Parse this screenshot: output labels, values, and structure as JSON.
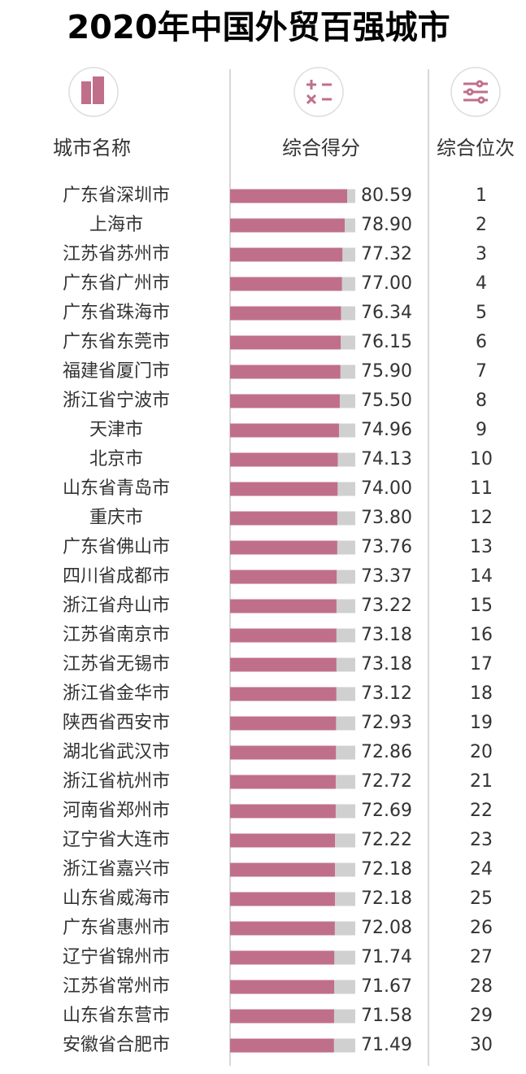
{
  "chart_data": {
    "type": "bar",
    "title": "2020年中国外贸百强城市",
    "column_headers": [
      "城市名称",
      "综合得分",
      "综合位次"
    ],
    "categories": [
      "广东省深圳市",
      "上海市",
      "江苏省苏州市",
      "广东省广州市",
      "广东省珠海市",
      "广东省东莞市",
      "福建省厦门市",
      "浙江省宁波市",
      "天津市",
      "北京市",
      "山东省青岛市",
      "重庆市",
      "广东省佛山市",
      "四川省成都市",
      "浙江省舟山市",
      "江苏省南京市",
      "江苏省无锡市",
      "浙江省金华市",
      "陕西省西安市",
      "湖北省武汉市",
      "浙江省杭州市",
      "河南省郑州市",
      "辽宁省大连市",
      "浙江省嘉兴市",
      "山东省威海市",
      "广东省惠州市",
      "辽宁省锦州市",
      "江苏省常州市",
      "山东省东营市",
      "安徽省合肥市"
    ],
    "values": [
      80.59,
      78.9,
      77.32,
      77,
      76.34,
      76.15,
      75.9,
      75.5,
      74.96,
      74.13,
      74,
      73.8,
      73.76,
      73.37,
      73.22,
      73.18,
      73.18,
      73.12,
      72.93,
      72.86,
      72.72,
      72.69,
      72.22,
      72.18,
      72.18,
      72.08,
      71.74,
      71.67,
      71.58,
      71.49
    ],
    "value_labels": [
      "80.59",
      "78.90",
      "77.32",
      "77.00",
      "76.34",
      "76.15",
      "75.90",
      "75.50",
      "74.96",
      "74.13",
      "74.00",
      "73.80",
      "73.76",
      "73.37",
      "73.22",
      "73.18",
      "73.18",
      "73.12",
      "72.93",
      "72.86",
      "72.72",
      "72.69",
      "72.22",
      "72.18",
      "72.18",
      "72.08",
      "71.74",
      "71.67",
      "71.58",
      "71.49"
    ],
    "ranks": [
      1,
      2,
      3,
      4,
      5,
      6,
      7,
      8,
      9,
      10,
      11,
      12,
      13,
      14,
      15,
      16,
      17,
      18,
      19,
      20,
      21,
      22,
      23,
      24,
      25,
      26,
      27,
      28,
      29,
      30
    ],
    "color": "#c06f8b",
    "track_color": "#d0d0d0"
  }
}
